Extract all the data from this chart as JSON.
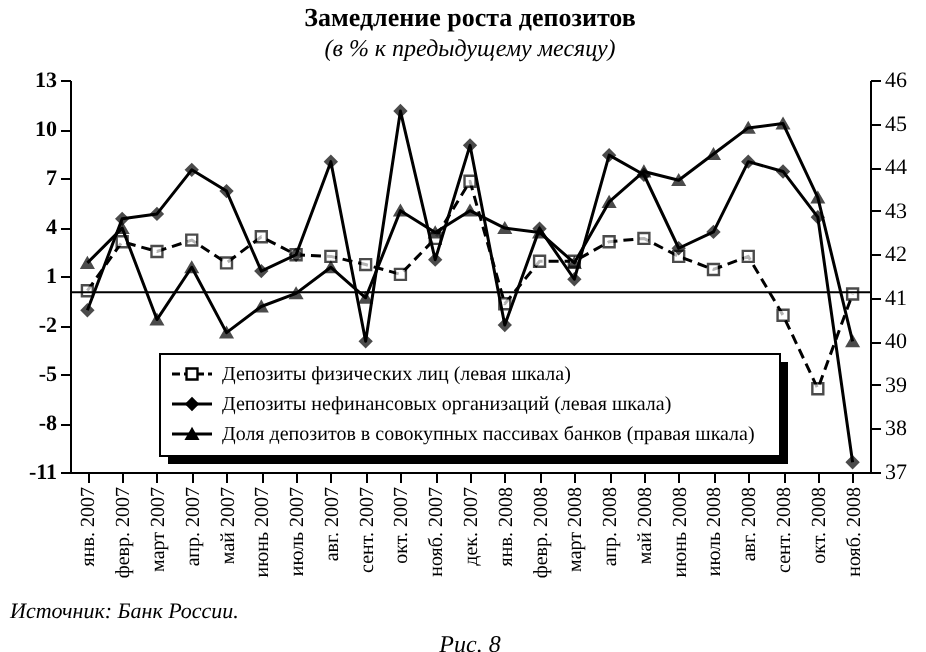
{
  "chart_data": {
    "type": "line",
    "title": "Замедление роста депозитов",
    "subtitle": "(в % к предыдущему месяцу)",
    "categories": [
      "янв. 2007",
      "февр. 2007",
      "март 2007",
      "апр. 2007",
      "май 2007",
      "июнь 2007",
      "июль 2007",
      "авг. 2007",
      "сент. 2007",
      "окт. 2007",
      "нояб. 2007",
      "дек. 2007",
      "янв. 2008",
      "февр. 2008",
      "март 2008",
      "апр. 2008",
      "май 2008",
      "июнь 2008",
      "июль 2008",
      "авг. 2008",
      "сент. 2008",
      "окт. 2008",
      "нояб. 2008"
    ],
    "series": [
      {
        "name": "Депозиты физических лиц (левая шкала)",
        "color": "#000000",
        "marker": "square",
        "line_style": "dashed",
        "values": [
          0.1,
          3.1,
          2.5,
          3.2,
          1.8,
          3.4,
          2.3,
          2.2,
          1.7,
          1.1,
          3.3,
          6.8,
          -0.7,
          1.9,
          1.9,
          3.1,
          3.3,
          2.2,
          1.4,
          2.2,
          -1.4,
          -5.9,
          -0.1
        ]
      },
      {
        "name": "Депозиты нефинансовых организаций (левая шкала)",
        "color": "#000000",
        "marker": "diamond",
        "line_style": "solid",
        "values": [
          -1.1,
          4.5,
          4.8,
          7.5,
          6.2,
          1.3,
          2.3,
          8.0,
          -3.0,
          11.1,
          2.0,
          9.0,
          -2.0,
          3.9,
          0.8,
          8.4,
          7.2,
          2.7,
          3.7,
          8.0,
          7.4,
          4.6,
          -10.4
        ]
      },
      {
        "name": "Доля депозитов в совокупных пассивах банков (правая шкала)",
        "color": "#000000",
        "marker": "triangle",
        "line_style": "solid",
        "axis": "y2",
        "values": [
          41.8,
          42.6,
          40.5,
          41.7,
          40.2,
          40.8,
          41.1,
          41.7,
          41.0,
          43.0,
          42.5,
          43.0,
          42.6,
          42.5,
          41.8,
          43.2,
          43.9,
          43.7,
          44.3,
          44.9,
          45.0,
          43.3,
          40.0
        ]
      }
    ],
    "ylim": [
      -11,
      13
    ],
    "yticks": [
      -11,
      -8,
      -5,
      -2,
      1,
      4,
      7,
      10,
      13
    ],
    "y2lim": [
      37,
      46
    ],
    "y2ticks": [
      37,
      38,
      39,
      40,
      41,
      42,
      43,
      44,
      45,
      46
    ],
    "ref_lines": [
      {
        "axis": "y",
        "value": 0,
        "color": "#000000"
      }
    ],
    "grid": false,
    "legend": "bottom",
    "annotations": [
      "Источник: Банк России.",
      "Рис. 8"
    ]
  }
}
